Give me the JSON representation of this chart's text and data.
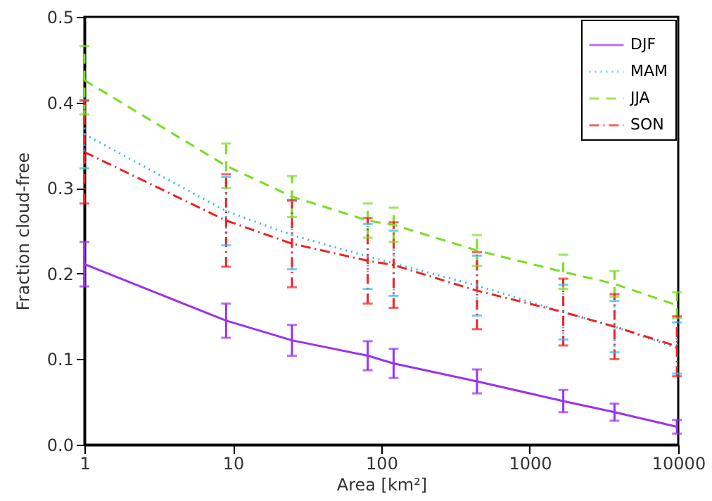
{
  "chart_data": {
    "type": "line",
    "xlabel": "Area [km²]",
    "ylabel": "Fraction cloud-free",
    "log": "x",
    "xlim": [
      1,
      10000
    ],
    "xticks": [
      1,
      10,
      100,
      1000,
      10000
    ],
    "ylim": [
      0,
      0.5
    ],
    "yticks": [
      {
        "value": 0,
        "label": "0.0"
      },
      0.1,
      0.2,
      0.3,
      0.4,
      0.5
    ],
    "legend": "top right",
    "grid": false,
    "marker": "none",
    "x": [
      1,
      9,
      25,
      81,
      121,
      441,
      1681,
      3721,
      9801
    ],
    "series": [
      {
        "name": "DJF",
        "color": "#9933ee",
        "line_style": "solid",
        "values": [
          0.211,
          0.145,
          0.122,
          0.104,
          0.095,
          0.074,
          0.051,
          0.038,
          0.021
        ],
        "errors": [
          0.026,
          0.02,
          0.018,
          0.017,
          0.017,
          0.014,
          0.013,
          0.01,
          0.008
        ]
      },
      {
        "name": "MAM",
        "color": "#33bbee",
        "line_style": "dotted",
        "values": [
          0.363,
          0.273,
          0.245,
          0.22,
          0.212,
          0.186,
          0.155,
          0.138,
          0.113
        ],
        "errors": [
          0.04,
          0.04,
          0.04,
          0.038,
          0.038,
          0.035,
          0.032,
          0.03,
          0.03
        ]
      },
      {
        "name": "JJA",
        "color": "#77dd22",
        "line_style": "dashed",
        "values": [
          0.426,
          0.326,
          0.29,
          0.262,
          0.257,
          0.227,
          0.202,
          0.188,
          0.163
        ],
        "errors": [
          0.04,
          0.026,
          0.024,
          0.02,
          0.02,
          0.018,
          0.02,
          0.015,
          0.015
        ]
      },
      {
        "name": "SON",
        "color": "#ee2222",
        "line_style": "dashdot",
        "values": [
          0.342,
          0.262,
          0.235,
          0.215,
          0.21,
          0.18,
          0.155,
          0.138,
          0.115
        ],
        "errors": [
          0.06,
          0.054,
          0.051,
          0.05,
          0.05,
          0.045,
          0.039,
          0.038,
          0.035
        ]
      }
    ]
  }
}
